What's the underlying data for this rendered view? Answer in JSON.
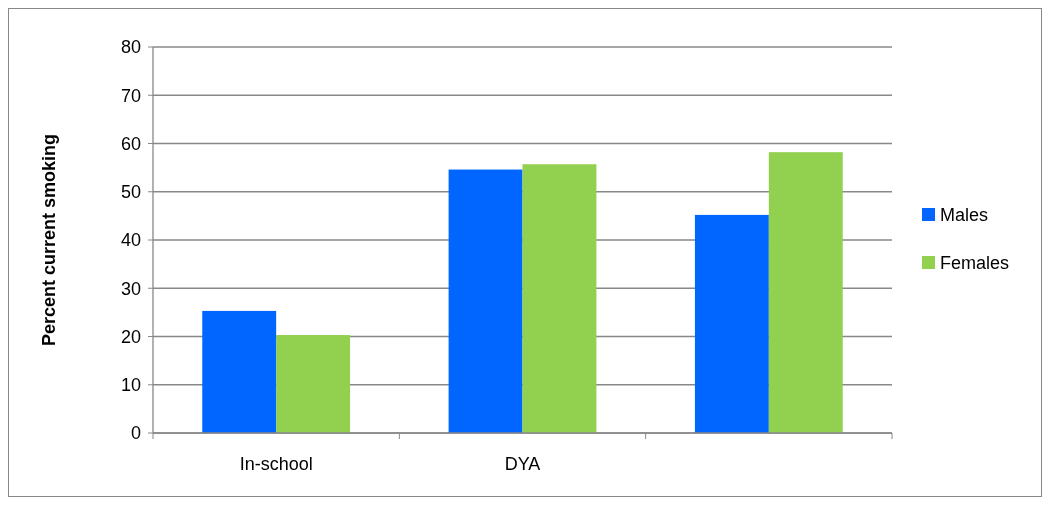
{
  "chart_data": {
    "type": "bar",
    "ylabel": "Percent current smoking",
    "categories": [
      "In-school",
      "DYA",
      null
    ],
    "series": [
      {
        "name": "Males",
        "color": "#0066ff",
        "values": [
          25.3,
          54.6,
          45.2
        ]
      },
      {
        "name": "Females",
        "color": "#92d050",
        "values": [
          20.3,
          55.7,
          58.2
        ]
      }
    ],
    "ylim": [
      0,
      80
    ],
    "yticks": [
      0,
      10,
      20,
      30,
      40,
      50,
      60,
      70,
      80
    ],
    "grid": "y",
    "legend": "right"
  }
}
